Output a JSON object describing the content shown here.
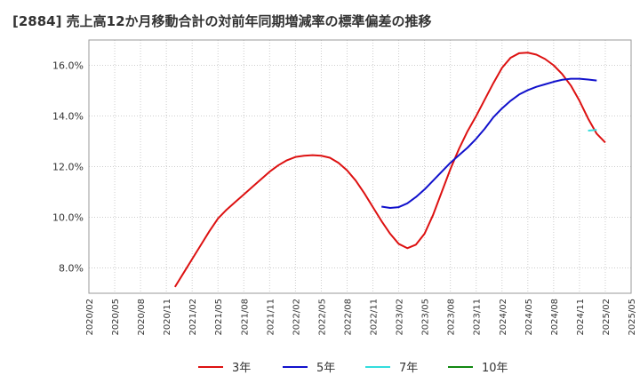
{
  "chart_data": {
    "type": "line",
    "title": "[2884]  売上高12か月移動合計の対前年同期増減率の標準偏差の推移",
    "xlabel": "",
    "ylabel": "",
    "ylim": [
      7.0,
      17.0
    ],
    "y_ticks": [
      "8.0%",
      "10.0%",
      "12.0%",
      "14.0%",
      "16.0%"
    ],
    "y_tick_values": [
      8,
      10,
      12,
      14,
      16
    ],
    "x_ticks": [
      "2020/02",
      "2020/05",
      "2020/08",
      "2020/11",
      "2021/02",
      "2021/05",
      "2021/08",
      "2021/11",
      "2022/02",
      "2022/05",
      "2022/08",
      "2022/11",
      "2023/02",
      "2023/05",
      "2023/08",
      "2023/11",
      "2024/02",
      "2024/05",
      "2024/08",
      "2024/11",
      "2025/02",
      "2025/05"
    ],
    "grid": true,
    "legend_position": "bottom",
    "series": [
      {
        "name": "3年",
        "color": "#dd1111",
        "points": [
          [
            "2020/12",
            7.25
          ],
          [
            "2021/01",
            7.8
          ],
          [
            "2021/02",
            8.35
          ],
          [
            "2021/03",
            8.9
          ],
          [
            "2021/04",
            9.45
          ],
          [
            "2021/05",
            9.95
          ],
          [
            "2021/06",
            10.3
          ],
          [
            "2021/07",
            10.6
          ],
          [
            "2021/08",
            10.9
          ],
          [
            "2021/09",
            11.2
          ],
          [
            "2021/10",
            11.5
          ],
          [
            "2021/11",
            11.8
          ],
          [
            "2021/12",
            12.05
          ],
          [
            "2022/01",
            12.25
          ],
          [
            "2022/02",
            12.38
          ],
          [
            "2022/03",
            12.43
          ],
          [
            "2022/04",
            12.45
          ],
          [
            "2022/05",
            12.43
          ],
          [
            "2022/06",
            12.35
          ],
          [
            "2022/07",
            12.15
          ],
          [
            "2022/08",
            11.85
          ],
          [
            "2022/09",
            11.45
          ],
          [
            "2022/10",
            10.95
          ],
          [
            "2022/11",
            10.4
          ],
          [
            "2022/12",
            9.85
          ],
          [
            "2023/01",
            9.35
          ],
          [
            "2023/02",
            8.95
          ],
          [
            "2023/03",
            8.78
          ],
          [
            "2023/04",
            8.92
          ],
          [
            "2023/05",
            9.35
          ],
          [
            "2023/06",
            10.1
          ],
          [
            "2023/07",
            11.0
          ],
          [
            "2023/08",
            11.9
          ],
          [
            "2023/09",
            12.7
          ],
          [
            "2023/10",
            13.4
          ],
          [
            "2023/11",
            14.0
          ],
          [
            "2023/12",
            14.65
          ],
          [
            "2024/01",
            15.3
          ],
          [
            "2024/02",
            15.9
          ],
          [
            "2024/03",
            16.3
          ],
          [
            "2024/04",
            16.48
          ],
          [
            "2024/05",
            16.5
          ],
          [
            "2024/06",
            16.42
          ],
          [
            "2024/07",
            16.25
          ],
          [
            "2024/08",
            16.0
          ],
          [
            "2024/09",
            15.65
          ],
          [
            "2024/10",
            15.2
          ],
          [
            "2024/11",
            14.6
          ],
          [
            "2024/12",
            13.9
          ],
          [
            "2025/01",
            13.3
          ],
          [
            "2025/02",
            12.95
          ]
        ]
      },
      {
        "name": "5年",
        "color": "#1111cc",
        "points": [
          [
            "2022/12",
            10.42
          ],
          [
            "2023/01",
            10.37
          ],
          [
            "2023/02",
            10.4
          ],
          [
            "2023/03",
            10.55
          ],
          [
            "2023/04",
            10.8
          ],
          [
            "2023/05",
            11.1
          ],
          [
            "2023/06",
            11.45
          ],
          [
            "2023/07",
            11.8
          ],
          [
            "2023/08",
            12.15
          ],
          [
            "2023/09",
            12.45
          ],
          [
            "2023/10",
            12.75
          ],
          [
            "2023/11",
            13.1
          ],
          [
            "2023/12",
            13.5
          ],
          [
            "2024/01",
            13.95
          ],
          [
            "2024/02",
            14.3
          ],
          [
            "2024/03",
            14.6
          ],
          [
            "2024/04",
            14.85
          ],
          [
            "2024/05",
            15.02
          ],
          [
            "2024/06",
            15.15
          ],
          [
            "2024/07",
            15.25
          ],
          [
            "2024/08",
            15.35
          ],
          [
            "2024/09",
            15.43
          ],
          [
            "2024/10",
            15.47
          ],
          [
            "2024/11",
            15.47
          ],
          [
            "2024/12",
            15.44
          ],
          [
            "2025/01",
            15.4
          ]
        ]
      },
      {
        "name": "7年",
        "color": "#33dddd",
        "points": [
          [
            "2024/12",
            13.42
          ],
          [
            "2025/01",
            13.45
          ]
        ]
      },
      {
        "name": "10年",
        "color": "#118811",
        "points": []
      }
    ]
  }
}
